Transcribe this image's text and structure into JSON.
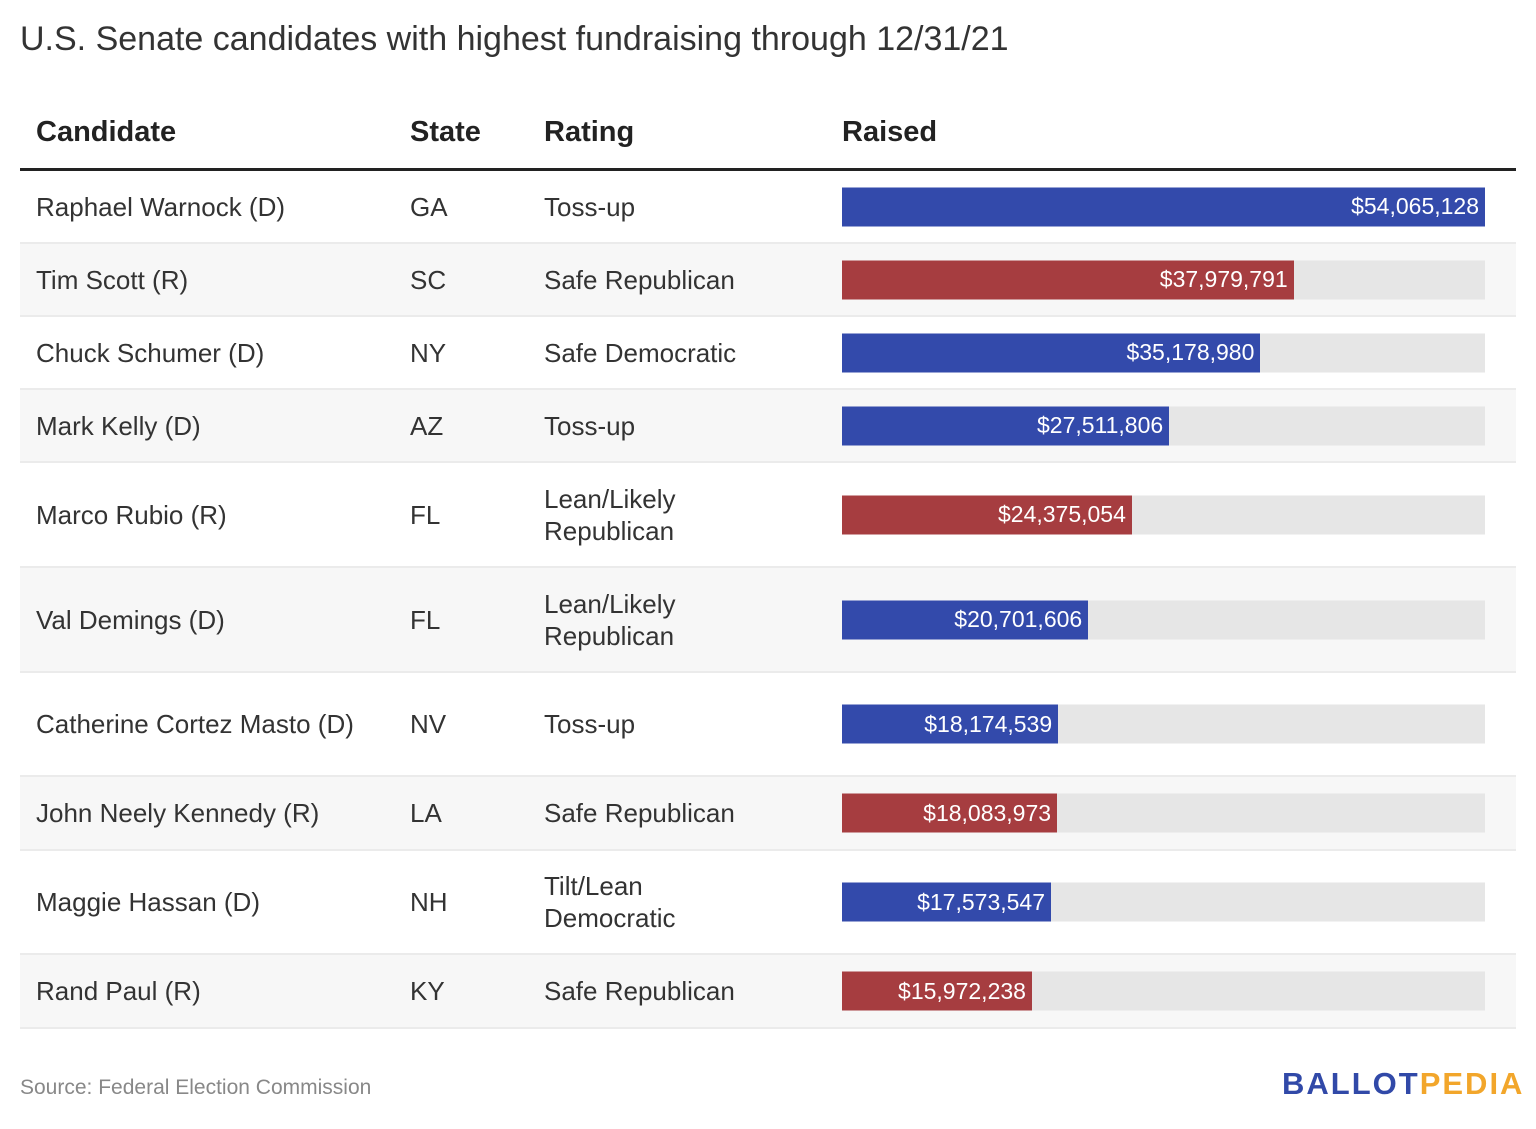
{
  "title": "U.S. Senate candidates with highest fundraising through 12/31/21",
  "columns": [
    "Candidate",
    "State",
    "Rating",
    "Raised"
  ],
  "colors": {
    "D": "#334aab",
    "R": "#a63d40",
    "track": "#e6e6e6",
    "logo_blue": "#3149a8",
    "logo_orange": "#f2a62b"
  },
  "chart_data": {
    "type": "table",
    "title": "U.S. Senate candidates with highest fundraising through 12/31/21",
    "xlim": [
      0,
      54065128
    ],
    "rows": [
      {
        "candidate": "Raphael Warnock (D)",
        "party": "D",
        "state": "GA",
        "rating": "Toss-up",
        "raised": 54065128,
        "label": "$54,065,128"
      },
      {
        "candidate": "Tim Scott (R)",
        "party": "R",
        "state": "SC",
        "rating": "Safe Republican",
        "raised": 37979791,
        "label": "$37,979,791"
      },
      {
        "candidate": "Chuck Schumer (D)",
        "party": "D",
        "state": "NY",
        "rating": "Safe Democratic",
        "raised": 35178980,
        "label": "$35,178,980"
      },
      {
        "candidate": "Mark Kelly (D)",
        "party": "D",
        "state": "AZ",
        "rating": "Toss-up",
        "raised": 27511806,
        "label": "$27,511,806"
      },
      {
        "candidate": "Marco Rubio (R)",
        "party": "R",
        "state": "FL",
        "rating": "Lean/Likely Republican",
        "raised": 24375054,
        "label": "$24,375,054"
      },
      {
        "candidate": "Val Demings (D)",
        "party": "D",
        "state": "FL",
        "rating": "Lean/Likely Republican",
        "raised": 20701606,
        "label": "$20,701,606"
      },
      {
        "candidate": "Catherine Cortez Masto (D)",
        "party": "D",
        "state": "NV",
        "rating": "Toss-up",
        "raised": 18174539,
        "label": "$18,174,539"
      },
      {
        "candidate": "John Neely Kennedy (R)",
        "party": "R",
        "state": "LA",
        "rating": "Safe Republican",
        "raised": 18083973,
        "label": "$18,083,973"
      },
      {
        "candidate": "Maggie Hassan (D)",
        "party": "D",
        "state": "NH",
        "rating": "Tilt/Lean Democratic",
        "raised": 17573547,
        "label": "$17,573,547"
      },
      {
        "candidate": "Rand Paul (R)",
        "party": "R",
        "state": "KY",
        "rating": "Safe Republican",
        "raised": 15972238,
        "label": "$15,972,238"
      }
    ]
  },
  "source": "Source: Federal Election Commission",
  "logo": {
    "part1": "BALLOT",
    "part2": "PEDIA"
  }
}
